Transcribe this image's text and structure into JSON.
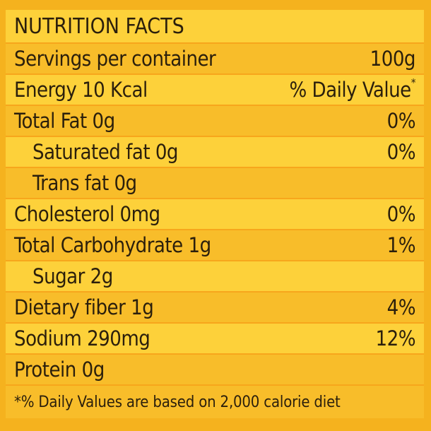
{
  "title": "NUTRITION FACTS",
  "servings": {
    "label": "Servings per container",
    "value": "100g"
  },
  "energy": {
    "label": "Energy 10 Kcal",
    "dv_header": "% Daily Value",
    "dv_star": "*"
  },
  "rows": [
    {
      "label": "Total Fat 0g",
      "value": "0%"
    },
    {
      "label": "Saturated fat 0g",
      "value": "0%"
    },
    {
      "label": "Trans fat 0g",
      "value": ""
    },
    {
      "label": "Cholesterol 0mg",
      "value": "0%"
    },
    {
      "label": "Total Carbohydrate 1g",
      "value": "1%"
    },
    {
      "label": "Sugar 2g",
      "value": ""
    },
    {
      "label": "Dietary fiber 1g",
      "value": "4%"
    },
    {
      "label": "Sodium 290mg",
      "value": "12%"
    },
    {
      "label": "Protein 0g",
      "value": ""
    }
  ],
  "footnote": "*% Daily Values are based on 2,000 calorie diet"
}
